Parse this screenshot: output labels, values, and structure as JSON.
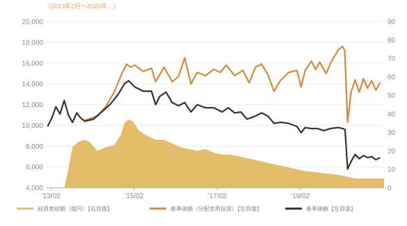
{
  "chart_data": {
    "type": "line",
    "header_text": "（2013年2月〜2020年…）",
    "x_ticks": [
      "'13/02",
      "'15/02",
      "'17/02",
      "'19/02"
    ],
    "y_left": {
      "ticks": [
        "4,000",
        "6,000",
        "8,000",
        "10,000",
        "12,000",
        "14,000",
        "16,000",
        "18,000",
        "20,000"
      ],
      "range": [
        4000,
        20000
      ]
    },
    "y_right": {
      "ticks": [
        "0",
        "10",
        "20",
        "30",
        "40",
        "50",
        "60",
        "70",
        "80",
        "90"
      ],
      "range": [
        0,
        90
      ]
    },
    "grid": true,
    "legend_position": "bottom",
    "series": [
      {
        "name": "純資産総額（億円）【右目盛】",
        "type": "area",
        "axis": "right",
        "color": "#e3bd69",
        "points": [
          [
            2013.0,
            0
          ],
          [
            2013.4,
            0
          ],
          [
            2013.5,
            10
          ],
          [
            2013.6,
            22
          ],
          [
            2013.75,
            25
          ],
          [
            2013.9,
            26
          ],
          [
            2014.0,
            25
          ],
          [
            2014.2,
            20
          ],
          [
            2014.4,
            22
          ],
          [
            2014.6,
            23
          ],
          [
            2014.75,
            28
          ],
          [
            2014.85,
            35
          ],
          [
            2014.95,
            37
          ],
          [
            2015.05,
            36
          ],
          [
            2015.2,
            31
          ],
          [
            2015.4,
            28
          ],
          [
            2015.6,
            26
          ],
          [
            2015.8,
            26
          ],
          [
            2016.0,
            24
          ],
          [
            2016.2,
            22
          ],
          [
            2016.4,
            21
          ],
          [
            2016.6,
            20
          ],
          [
            2016.8,
            21
          ],
          [
            2017.0,
            19
          ],
          [
            2017.2,
            18
          ],
          [
            2017.4,
            18
          ],
          [
            2017.6,
            17
          ],
          [
            2017.8,
            16
          ],
          [
            2018.0,
            15
          ],
          [
            2018.2,
            14
          ],
          [
            2018.4,
            13
          ],
          [
            2018.6,
            12
          ],
          [
            2018.8,
            11
          ],
          [
            2019.0,
            10
          ],
          [
            2019.2,
            9
          ],
          [
            2019.4,
            8.5
          ],
          [
            2019.6,
            8
          ],
          [
            2019.8,
            7.5
          ],
          [
            2020.0,
            7
          ],
          [
            2020.2,
            6
          ],
          [
            2020.4,
            5
          ],
          [
            2020.6,
            5
          ],
          [
            2020.8,
            5
          ],
          [
            2021.0,
            5
          ],
          [
            2021.1,
            5
          ]
        ]
      },
      {
        "name": "基準価額（分配金再投資）【左目盛】",
        "type": "line",
        "axis": "left",
        "color": "#d9883a",
        "points": [
          [
            2013.9,
            10500
          ],
          [
            2014.2,
            10900
          ],
          [
            2014.4,
            11800
          ],
          [
            2014.6,
            13200
          ],
          [
            2014.8,
            15100
          ],
          [
            2014.9,
            15900
          ],
          [
            2015.0,
            15600
          ],
          [
            2015.1,
            15800
          ],
          [
            2015.3,
            15200
          ],
          [
            2015.5,
            15500
          ],
          [
            2015.6,
            14200
          ],
          [
            2015.7,
            14900
          ],
          [
            2015.8,
            15600
          ],
          [
            2016.0,
            14200
          ],
          [
            2016.15,
            14700
          ],
          [
            2016.3,
            16500
          ],
          [
            2016.45,
            14000
          ],
          [
            2016.6,
            15100
          ],
          [
            2016.8,
            14800
          ],
          [
            2017.0,
            15400
          ],
          [
            2017.15,
            15100
          ],
          [
            2017.3,
            15800
          ],
          [
            2017.5,
            14800
          ],
          [
            2017.7,
            15300
          ],
          [
            2017.85,
            14100
          ],
          [
            2018.0,
            15600
          ],
          [
            2018.15,
            15900
          ],
          [
            2018.3,
            14900
          ],
          [
            2018.45,
            13300
          ],
          [
            2018.6,
            14300
          ],
          [
            2018.8,
            15100
          ],
          [
            2019.0,
            15300
          ],
          [
            2019.1,
            13700
          ],
          [
            2019.2,
            15300
          ],
          [
            2019.35,
            16200
          ],
          [
            2019.45,
            15400
          ],
          [
            2019.55,
            16100
          ],
          [
            2019.7,
            15000
          ],
          [
            2019.85,
            16300
          ],
          [
            2020.0,
            17300
          ],
          [
            2020.1,
            17600
          ],
          [
            2020.15,
            17200
          ],
          [
            2020.22,
            10300
          ],
          [
            2020.3,
            13100
          ],
          [
            2020.4,
            14400
          ],
          [
            2020.5,
            13200
          ],
          [
            2020.6,
            14500
          ],
          [
            2020.7,
            13600
          ],
          [
            2020.8,
            14300
          ],
          [
            2020.9,
            13400
          ],
          [
            2021.0,
            14100
          ]
        ]
      },
      {
        "name": "基準価額【左目盛】",
        "type": "line",
        "axis": "left",
        "color": "#3a2f2d",
        "points": [
          [
            2013.0,
            9900
          ],
          [
            2013.1,
            10700
          ],
          [
            2013.2,
            11800
          ],
          [
            2013.3,
            11100
          ],
          [
            2013.4,
            12400
          ],
          [
            2013.5,
            11000
          ],
          [
            2013.6,
            10300
          ],
          [
            2013.7,
            11200
          ],
          [
            2013.8,
            10700
          ],
          [
            2013.9,
            10400
          ],
          [
            2014.1,
            10600
          ],
          [
            2014.3,
            11300
          ],
          [
            2014.5,
            12000
          ],
          [
            2014.7,
            13000
          ],
          [
            2014.85,
            14000
          ],
          [
            2014.95,
            14300
          ],
          [
            2015.1,
            13700
          ],
          [
            2015.3,
            13300
          ],
          [
            2015.5,
            13300
          ],
          [
            2015.6,
            12000
          ],
          [
            2015.7,
            12800
          ],
          [
            2015.85,
            13200
          ],
          [
            2016.0,
            12200
          ],
          [
            2016.15,
            11900
          ],
          [
            2016.3,
            12200
          ],
          [
            2016.45,
            11300
          ],
          [
            2016.6,
            12000
          ],
          [
            2016.8,
            11700
          ],
          [
            2017.0,
            11700
          ],
          [
            2017.2,
            11300
          ],
          [
            2017.35,
            11700
          ],
          [
            2017.5,
            11200
          ],
          [
            2017.65,
            11300
          ],
          [
            2017.8,
            10600
          ],
          [
            2018.0,
            10900
          ],
          [
            2018.15,
            11200
          ],
          [
            2018.3,
            10900
          ],
          [
            2018.45,
            10200
          ],
          [
            2018.6,
            10300
          ],
          [
            2018.8,
            10200
          ],
          [
            2019.0,
            9900
          ],
          [
            2019.1,
            9300
          ],
          [
            2019.2,
            9800
          ],
          [
            2019.35,
            9700
          ],
          [
            2019.5,
            9700
          ],
          [
            2019.65,
            9500
          ],
          [
            2019.8,
            9700
          ],
          [
            2020.0,
            9800
          ],
          [
            2020.1,
            9700
          ],
          [
            2020.16,
            9600
          ],
          [
            2020.22,
            5800
          ],
          [
            2020.3,
            6500
          ],
          [
            2020.4,
            7200
          ],
          [
            2020.5,
            6800
          ],
          [
            2020.6,
            7100
          ],
          [
            2020.7,
            6900
          ],
          [
            2020.8,
            7000
          ],
          [
            2020.9,
            6700
          ],
          [
            2021.0,
            6900
          ]
        ]
      }
    ]
  }
}
